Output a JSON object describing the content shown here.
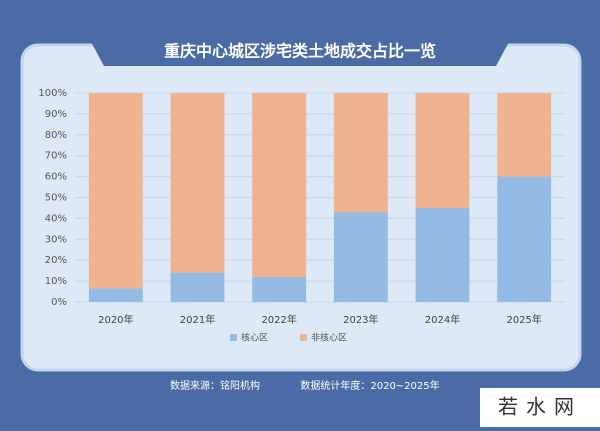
{
  "chart_data": {
    "type": "stacked_bar",
    "title": "重庆中心城区涉宅类土地成交占比一览",
    "categories": [
      "2020年",
      "2021年",
      "2022年",
      "2023年",
      "2024年",
      "2025年"
    ],
    "series": [
      {
        "name": "核心区",
        "color": "#93bbe6",
        "values": [
          6.5,
          14,
          12,
          43,
          45,
          60
        ]
      },
      {
        "name": "非核心区",
        "color": "#eeb38f",
        "values": [
          93.5,
          86,
          88,
          57,
          55,
          40
        ]
      }
    ],
    "ylim": [
      0,
      100
    ],
    "yticks": [
      {
        "value": 0,
        "label": "0%"
      },
      {
        "value": 10,
        "label": "10%"
      },
      {
        "value": 20,
        "label": "20%"
      },
      {
        "value": 30,
        "label": "30%"
      },
      {
        "value": 40,
        "label": "40%"
      },
      {
        "value": 50,
        "label": "50%"
      },
      {
        "value": 60,
        "label": "60%"
      },
      {
        "value": 70,
        "label": "70%"
      },
      {
        "value": 80,
        "label": "80%"
      },
      {
        "value": 90,
        "label": "90%"
      },
      {
        "value": 100,
        "label": "100%"
      }
    ],
    "grid": true,
    "source": "数据来源：铭阳机构",
    "period": "数据统计年度：2020~2025年",
    "watermark": "若水网"
  }
}
